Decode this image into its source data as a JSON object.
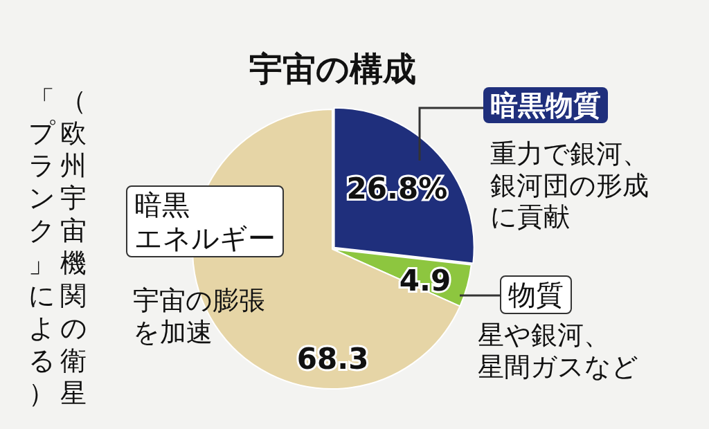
{
  "chart_data": {
    "type": "pie",
    "title": "宇宙の構成",
    "categories": [
      "暗黒物質",
      "物質",
      "暗黒エネルギー"
    ],
    "values": [
      26.8,
      4.9,
      68.3
    ],
    "colors": [
      "#1f2f7c",
      "#8dc63f",
      "#e6d5a6"
    ],
    "value_labels": [
      "26.8%",
      "4.9",
      "68.3"
    ],
    "annotations": [
      "重力で銀河、銀河団の形成に貢献",
      "星や銀河、星間ガスなど",
      "宇宙の膨張を加速",
      "（欧州宇宙機関の衛星「プランク」による）"
    ],
    "legend": false
  }
}
